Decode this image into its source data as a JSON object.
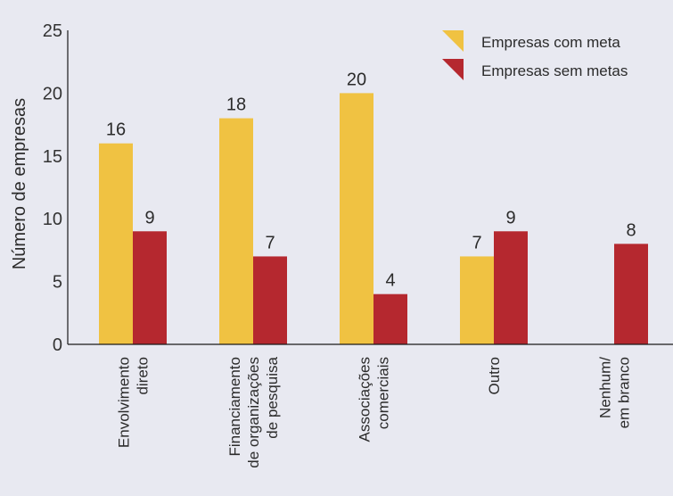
{
  "chart_data": {
    "type": "bar",
    "ylabel": "Número de empresas",
    "ylim": [
      0,
      25
    ],
    "yticks": [
      0,
      5,
      10,
      15,
      20,
      25
    ],
    "categories": [
      [
        "Envolvimento",
        "direto"
      ],
      [
        "Financiamento",
        "de organizações",
        "de pesquisa"
      ],
      [
        "Associações",
        "comerciais"
      ],
      [
        "Outro"
      ],
      [
        "Nenhum/",
        "em branco"
      ]
    ],
    "series": [
      {
        "name": "Empresas com meta",
        "color": "#f0c242",
        "values": [
          16,
          18,
          20,
          7,
          null
        ]
      },
      {
        "name": "Empresas sem metas",
        "color": "#b5282f",
        "values": [
          9,
          7,
          4,
          9,
          8
        ]
      }
    ],
    "legend_position": "top-right"
  }
}
